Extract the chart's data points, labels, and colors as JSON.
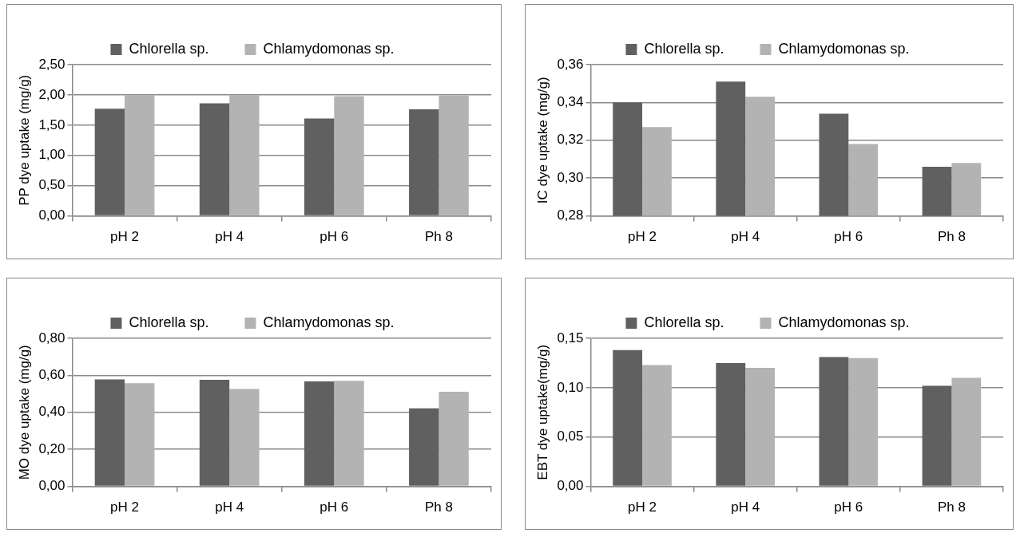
{
  "chart_data": [
    {
      "type": "bar",
      "categories": [
        "pH 2",
        "pH 4",
        "pH 6",
        "Ph 8"
      ],
      "ylabel": "PP dye uptake (mg/g)",
      "ylim": [
        0,
        2.5
      ],
      "yticks": [
        {
          "value": 0,
          "label": "0,00"
        },
        {
          "value": 0.5,
          "label": "0,50"
        },
        {
          "value": 1,
          "label": "1,00"
        },
        {
          "value": 1.5,
          "label": "1,50"
        },
        {
          "value": 2,
          "label": "2,00"
        },
        {
          "value": 2.5,
          "label": "2,50"
        }
      ],
      "grid": "y",
      "legend": "top",
      "series": [
        {
          "name": "Chlorella sp.",
          "color": "#606060",
          "values": [
            1.77,
            1.86,
            1.61,
            1.76
          ]
        },
        {
          "name": "Chlamydomonas sp.",
          "color": "#b3b3b3",
          "values": [
            2.0,
            2.0,
            1.98,
            1.99
          ]
        }
      ]
    },
    {
      "type": "bar",
      "categories": [
        "pH 2",
        "pH 4",
        "pH 6",
        "Ph 8"
      ],
      "ylabel": "IC dye uptake (mg/g)",
      "ylim": [
        0.28,
        0.36
      ],
      "yticks": [
        {
          "value": 0.28,
          "label": "0,28"
        },
        {
          "value": 0.3,
          "label": "0,30"
        },
        {
          "value": 0.32,
          "label": "0,32"
        },
        {
          "value": 0.34,
          "label": "0,34"
        },
        {
          "value": 0.36,
          "label": "0,36"
        }
      ],
      "grid": "y",
      "legend": "top",
      "series": [
        {
          "name": "Chlorella sp.",
          "color": "#606060",
          "values": [
            0.34,
            0.351,
            0.334,
            0.306
          ]
        },
        {
          "name": "Chlamydomonas sp.",
          "color": "#b3b3b3",
          "values": [
            0.327,
            0.343,
            0.318,
            0.308
          ]
        }
      ]
    },
    {
      "type": "bar",
      "categories": [
        "pH 2",
        "pH 4",
        "pH 6",
        "Ph 8"
      ],
      "ylabel": "MO dye uptake (mg/g)",
      "ylim": [
        0,
        0.8
      ],
      "yticks": [
        {
          "value": 0,
          "label": "0,00"
        },
        {
          "value": 0.2,
          "label": "0,20"
        },
        {
          "value": 0.4,
          "label": "0,40"
        },
        {
          "value": 0.6,
          "label": "0,60"
        },
        {
          "value": 0.8,
          "label": "0,80"
        }
      ],
      "grid": "y",
      "legend": "top",
      "series": [
        {
          "name": "Chlorella sp.",
          "color": "#606060",
          "values": [
            0.578,
            0.576,
            0.567,
            0.422
          ]
        },
        {
          "name": "Chlamydomonas sp.",
          "color": "#b3b3b3",
          "values": [
            0.558,
            0.526,
            0.57,
            0.511
          ]
        }
      ]
    },
    {
      "type": "bar",
      "categories": [
        "pH 2",
        "pH 4",
        "pH 6",
        "Ph 8"
      ],
      "ylabel": "EBT dye uptake(mg/g)",
      "ylim": [
        0,
        0.15
      ],
      "yticks": [
        {
          "value": 0,
          "label": "0,00"
        },
        {
          "value": 0.05,
          "label": "0,05"
        },
        {
          "value": 0.1,
          "label": "0,10"
        },
        {
          "value": 0.15,
          "label": "0,15"
        }
      ],
      "grid": "y",
      "legend": "top",
      "series": [
        {
          "name": "Chlorella sp.",
          "color": "#606060",
          "values": [
            0.138,
            0.125,
            0.131,
            0.102
          ]
        },
        {
          "name": "Chlamydomonas sp.",
          "color": "#b3b3b3",
          "values": [
            0.123,
            0.12,
            0.13,
            0.11
          ]
        }
      ]
    }
  ]
}
